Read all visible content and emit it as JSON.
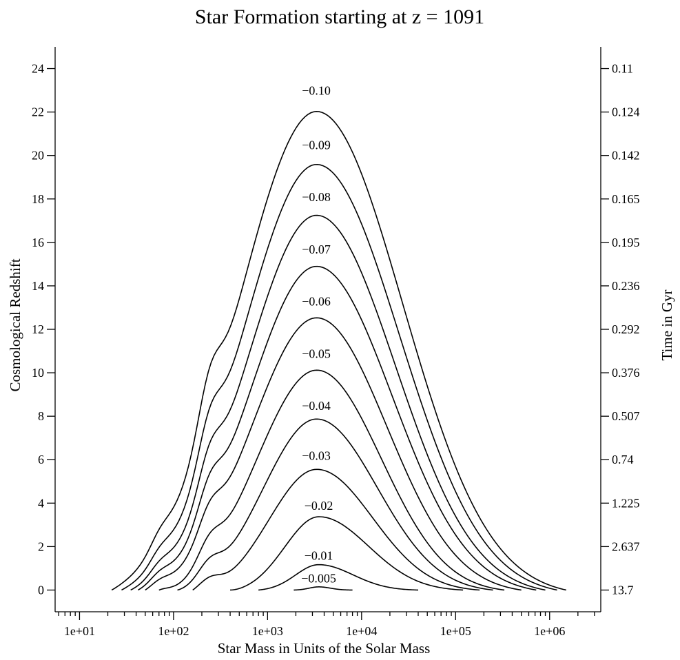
{
  "chart_data": {
    "type": "line",
    "title": "Star Formation starting at z = 1091",
    "xlabel": "Star Mass in Units of the Solar Mass",
    "ylabel_left": "Cosmological Redshift",
    "ylabel_right": "Time in Gyr",
    "x_scale": "log",
    "xlim": [
      5.5,
      3500000.0
    ],
    "ylim": [
      -1,
      25
    ],
    "grid": false,
    "x_tick_values": [
      10,
      100,
      1000,
      10000,
      100000,
      1000000
    ],
    "x_tick_labels": [
      "1e+01",
      "1e+02",
      "1e+03",
      "1e+04",
      "1e+05",
      "1e+06"
    ],
    "y_tick_values": [
      0,
      2,
      4,
      6,
      8,
      10,
      12,
      14,
      16,
      18,
      20,
      22,
      24
    ],
    "y_tick_labels": [
      "0",
      "2",
      "4",
      "6",
      "8",
      "10",
      "12",
      "14",
      "16",
      "18",
      "20",
      "22",
      "24"
    ],
    "right_tick_labels": [
      "13.7",
      "2.637",
      "1.225",
      "0.74",
      "0.507",
      "0.376",
      "0.292",
      "0.236",
      "0.195",
      "0.165",
      "0.142",
      "0.124",
      "0.11"
    ],
    "curves": [
      {
        "label": "−0.10",
        "peak_x": 3300,
        "peak_y": 22.6,
        "x_start": 22,
        "x_end": 1500000
      },
      {
        "label": "−0.09",
        "peak_x": 3300,
        "peak_y": 20.1,
        "x_start": 28,
        "x_end": 1200000
      },
      {
        "label": "−0.08",
        "peak_x": 3300,
        "peak_y": 17.7,
        "x_start": 35,
        "x_end": 900000
      },
      {
        "label": "−0.07",
        "peak_x": 3300,
        "peak_y": 15.3,
        "x_start": 42,
        "x_end": 720000
      },
      {
        "label": "−0.06",
        "peak_x": 3300,
        "peak_y": 12.9,
        "x_start": 50,
        "x_end": 500000
      },
      {
        "label": "−0.05",
        "peak_x": 3300,
        "peak_y": 10.5,
        "x_start": 70,
        "x_end": 330000
      },
      {
        "label": "−0.04",
        "peak_x": 3300,
        "peak_y": 8.1,
        "x_start": 110,
        "x_end": 250000
      },
      {
        "label": "−0.03",
        "peak_x": 3300,
        "peak_y": 5.8,
        "x_start": 160,
        "x_end": 180000
      },
      {
        "label": "−0.02",
        "peak_x": 3500,
        "peak_y": 3.5,
        "x_start": 400,
        "x_end": 120000
      },
      {
        "label": "−0.01",
        "peak_x": 3500,
        "peak_y": 1.2,
        "x_start": 800,
        "x_end": 40000
      },
      {
        "label": "−0.005",
        "peak_x": 3500,
        "peak_y": 0.15,
        "x_start": 1900,
        "x_end": 8000
      }
    ]
  }
}
